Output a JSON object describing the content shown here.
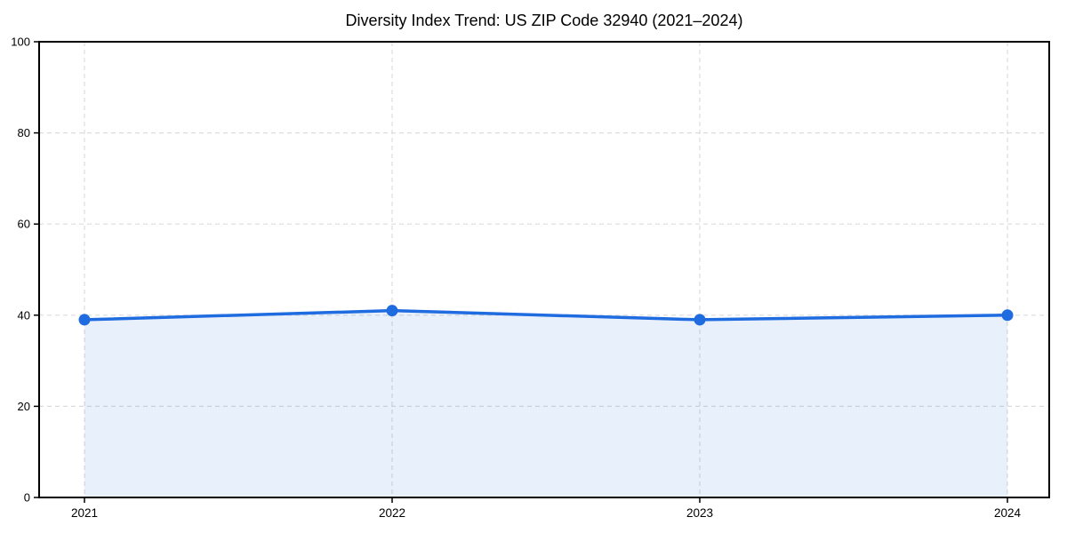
{
  "chart_data": {
    "type": "area",
    "title": "Diversity Index Trend: US ZIP Code 32940 (2021–2024)",
    "categories": [
      "2021",
      "2022",
      "2023",
      "2024"
    ],
    "values": [
      39,
      41,
      39,
      40
    ],
    "xlabel": "",
    "ylabel": "",
    "ylim": [
      0,
      100
    ],
    "yticks": [
      0,
      20,
      40,
      60,
      80,
      100
    ],
    "grid": "dashed-both-axes",
    "legend": "none",
    "marker": "circle",
    "colors": {
      "line": "#1f6be0",
      "marker": "#1f6be0",
      "fill": "rgba(31,107,224,0.10)",
      "grid": "#dcdcdc",
      "axis": "#000000",
      "text": "#000000",
      "background": "#ffffff"
    }
  }
}
